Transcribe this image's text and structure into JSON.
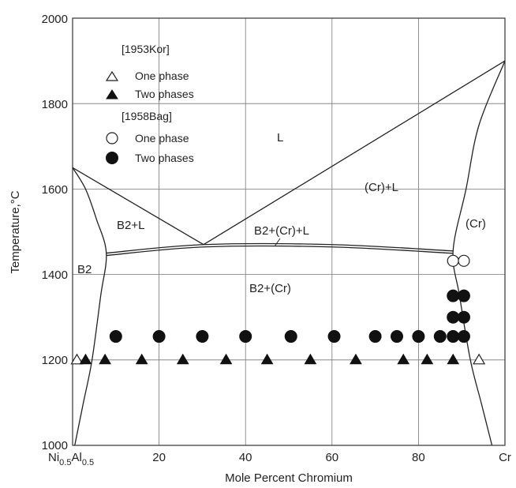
{
  "chart_data": {
    "type": "scatter",
    "title": "",
    "xlabel": "Mole Percent Chromium",
    "ylabel": "Temperature,°C",
    "xlim": [
      0,
      100
    ],
    "ylim": [
      1000,
      2000
    ],
    "grid": true,
    "legend_position": "top-left",
    "x_tick_labels": {
      "start_main": "Ni",
      "start_sub1": "0.5",
      "start_mid": "Al",
      "start_sub2": "0.5",
      "end": "Cr",
      "values": [
        "20",
        "40",
        "60",
        "80"
      ]
    },
    "y_tick_labels": [
      "1000",
      "1200",
      "1400",
      "1600",
      "1800",
      "2000"
    ],
    "legend": {
      "group1_label": "[1953Kor]",
      "group1_one": "One phase",
      "group1_two": "Two phases",
      "group2_label": "[1958Bag]",
      "group2_one": "One phase",
      "group2_two": "Two phases"
    },
    "region_labels": {
      "liquid": "L",
      "cr_liquid": "(Cr)+L",
      "b2_liquid": "B2+L",
      "b2_cr_liquid": "B2+(Cr)+L",
      "cr": "(Cr)",
      "b2": "B2",
      "b2_cr": "B2+(Cr)"
    },
    "phase_boundaries": [
      {
        "name": "liquidus-b2",
        "x": [
          0,
          30.3
        ],
        "y": [
          1650,
          1470
        ]
      },
      {
        "name": "liquidus-cr",
        "x": [
          30.3,
          100
        ],
        "y": [
          1470,
          1900
        ]
      },
      {
        "name": "eutectic-line",
        "x": [
          7.8,
          30.3,
          60,
          88
        ],
        "y": [
          1450,
          1470,
          1470,
          1455
        ]
      },
      {
        "name": "b2-solvus",
        "x": [
          0,
          3,
          5.5,
          7.8,
          6.5,
          4.5,
          2.5,
          0.5
        ],
        "y": [
          1650,
          1600,
          1530,
          1450,
          1350,
          1200,
          1100,
          1000
        ]
      },
      {
        "name": "cr-solvus",
        "x": [
          100,
          94,
          91,
          88,
          89.5,
          92,
          94.5,
          97
        ],
        "y": [
          1900,
          1750,
          1600,
          1455,
          1350,
          1200,
          1100,
          1000
        ]
      }
    ],
    "series": [
      {
        "name": "[1953Kor] One phase",
        "marker": "open-triangle",
        "points": [
          [
            1,
            1200
          ],
          [
            94,
            1200
          ]
        ]
      },
      {
        "name": "[1953Kor] Two phases",
        "marker": "filled-triangle",
        "points": [
          [
            3,
            1200
          ],
          [
            7.5,
            1200
          ],
          [
            16,
            1200
          ],
          [
            25.5,
            1200
          ],
          [
            35.5,
            1200
          ],
          [
            45,
            1200
          ],
          [
            55,
            1200
          ],
          [
            65.5,
            1200
          ],
          [
            76.5,
            1200
          ],
          [
            82,
            1200
          ],
          [
            88,
            1200
          ]
        ]
      },
      {
        "name": "[1958Bag] One phase",
        "marker": "open-circle",
        "points": [
          [
            88,
            1432
          ],
          [
            90.5,
            1432
          ]
        ]
      },
      {
        "name": "[1958Bag] Two phases",
        "marker": "filled-circle",
        "points": [
          [
            10,
            1255
          ],
          [
            20,
            1255
          ],
          [
            30,
            1255
          ],
          [
            40,
            1255
          ],
          [
            50.5,
            1255
          ],
          [
            60.5,
            1255
          ],
          [
            70,
            1255
          ],
          [
            75,
            1255
          ],
          [
            80,
            1255
          ],
          [
            85,
            1255
          ],
          [
            88,
            1255
          ],
          [
            90.5,
            1255
          ],
          [
            88,
            1300
          ],
          [
            90.5,
            1300
          ],
          [
            88,
            1350
          ],
          [
            90.5,
            1350
          ]
        ]
      }
    ]
  }
}
